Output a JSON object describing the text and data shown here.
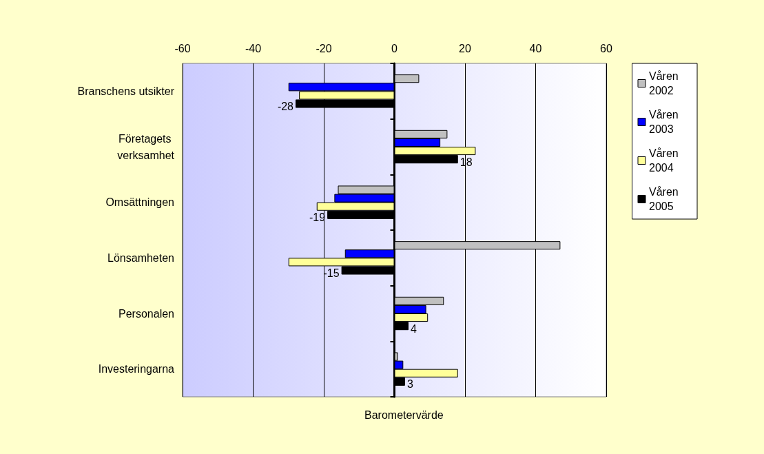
{
  "chart_data": {
    "type": "bar",
    "orientation": "horizontal",
    "xlabel": "Barometervärde",
    "categories": [
      "Branschens utsikter",
      "Företagets verksamhet",
      "Omsättningen",
      "Lönsamheten",
      "Personalen",
      "Investeringarna"
    ],
    "series": [
      {
        "name": "Våren 2002",
        "color": "#c0c0c0",
        "values": [
          7,
          15,
          -16,
          47,
          14,
          1
        ]
      },
      {
        "name": "Våren 2003",
        "color": "#0000ff",
        "values": [
          -30,
          13,
          -17,
          -14,
          9,
          2.5
        ]
      },
      {
        "name": "Våren 2004",
        "color": "#ffff99",
        "values": [
          -27,
          23,
          -22,
          -30,
          9.5,
          18
        ]
      },
      {
        "name": "Våren 2005",
        "color": "#000000",
        "values": [
          -28,
          18,
          -19,
          -15,
          4,
          3
        ],
        "value_labels": [
          "-28",
          "18",
          "-19",
          "-15",
          "4",
          "3"
        ]
      }
    ],
    "xlim": [
      -60,
      60
    ],
    "xticks": [
      -60,
      -40,
      -20,
      0,
      20,
      40,
      60
    ],
    "grid": "x",
    "legend": "right"
  }
}
